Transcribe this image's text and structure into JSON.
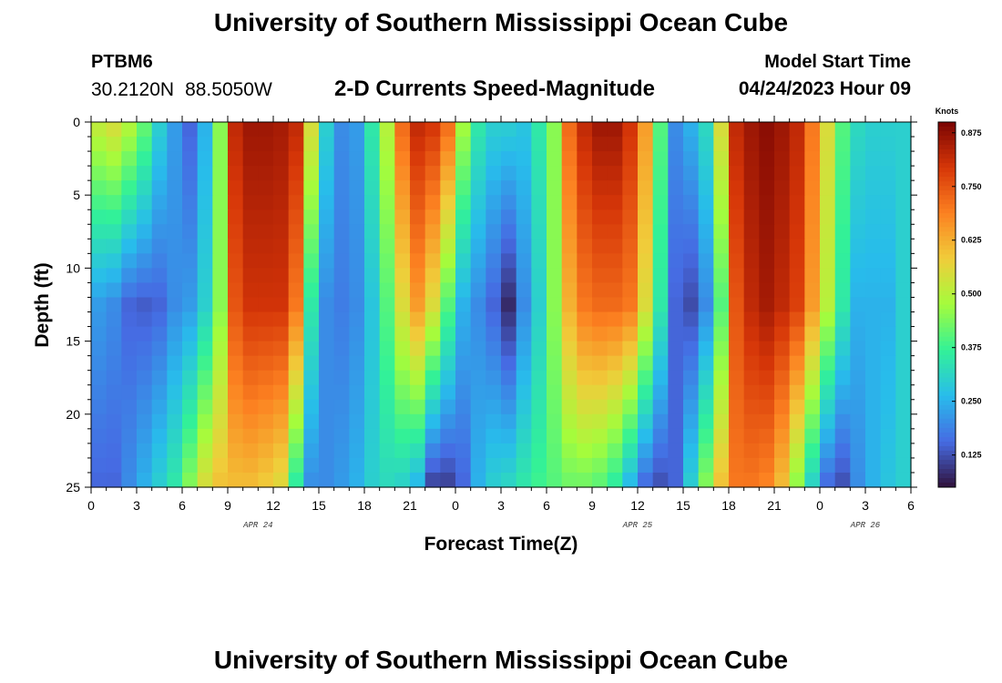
{
  "page": {
    "title": "University of Southern Mississippi Ocean Cube",
    "title_repeat": "University of Southern Mississippi Ocean Cube",
    "station": "PTBM6",
    "latitude": "30.2120N",
    "longitude": "88.5050W",
    "subtitle": "2-D Currents Speed-Magnitude",
    "model_start_label": "Model Start Time",
    "model_start_value": "04/24/2023 Hour 09"
  },
  "colors": {
    "low": "#30123b",
    "mid": "#7cf24a",
    "high": "#7a0403",
    "colormap": "turbo"
  },
  "chart_data": {
    "type": "heatmap",
    "title": "2-D Currents Speed-Magnitude",
    "xlabel": "Forecast Time(Z)",
    "ylabel": "Depth (ft)",
    "x_tick_labels": [
      "0",
      "3",
      "6",
      "9",
      "12",
      "15",
      "18",
      "21",
      "0",
      "3",
      "6",
      "9",
      "12",
      "15",
      "18",
      "21",
      "0",
      "3",
      "6"
    ],
    "x_range_hours": [
      0,
      54
    ],
    "day_labels": [
      {
        "label": "APR 24",
        "at_hour": 11
      },
      {
        "label": "APR 25",
        "at_hour": 36
      },
      {
        "label": "APR 26",
        "at_hour": 51
      }
    ],
    "y_tick_labels": [
      "0",
      "5",
      "10",
      "15",
      "20",
      "25"
    ],
    "y_range_ft": [
      0,
      25
    ],
    "colorbar": {
      "title": "Knots",
      "range": [
        0.05,
        0.9
      ],
      "tick_labels": [
        "0.125",
        "0.250",
        "0.375",
        "0.500",
        "0.625",
        "0.750",
        "0.875"
      ]
    },
    "grid": {
      "x_hours": 54,
      "y_levels": 25
    },
    "profiles_depth_ft": [
      0,
      12.5,
      25
    ],
    "profile_times_hours": [
      0,
      1,
      2,
      3,
      4,
      5,
      6,
      7,
      8,
      9,
      10,
      11,
      12,
      13,
      14,
      15,
      16,
      17,
      18,
      19,
      20,
      21,
      22,
      23,
      24,
      25,
      26,
      27,
      28,
      29,
      30,
      31,
      32,
      33,
      34,
      35,
      36,
      37,
      38,
      39,
      40,
      41,
      42,
      43,
      44,
      45,
      46,
      47,
      48,
      49,
      50,
      51,
      52,
      53
    ],
    "speed_knots_surface": [
      0.52,
      0.55,
      0.5,
      0.42,
      0.3,
      0.22,
      0.15,
      0.25,
      0.45,
      0.82,
      0.86,
      0.86,
      0.85,
      0.82,
      0.55,
      0.3,
      0.2,
      0.22,
      0.35,
      0.5,
      0.72,
      0.82,
      0.8,
      0.72,
      0.48,
      0.35,
      0.3,
      0.3,
      0.28,
      0.35,
      0.45,
      0.72,
      0.82,
      0.86,
      0.86,
      0.8,
      0.65,
      0.4,
      0.2,
      0.25,
      0.32,
      0.55,
      0.82,
      0.86,
      0.88,
      0.86,
      0.82,
      0.7,
      0.55,
      0.4,
      0.32,
      0.3,
      0.3,
      0.3
    ],
    "speed_knots_mid": [
      0.22,
      0.2,
      0.15,
      0.14,
      0.15,
      0.2,
      0.22,
      0.3,
      0.45,
      0.75,
      0.8,
      0.8,
      0.8,
      0.7,
      0.35,
      0.2,
      0.18,
      0.2,
      0.28,
      0.4,
      0.55,
      0.65,
      0.55,
      0.4,
      0.25,
      0.2,
      0.15,
      0.08,
      0.2,
      0.3,
      0.45,
      0.62,
      0.7,
      0.72,
      0.72,
      0.7,
      0.55,
      0.35,
      0.15,
      0.12,
      0.2,
      0.4,
      0.75,
      0.82,
      0.85,
      0.82,
      0.78,
      0.65,
      0.5,
      0.35,
      0.25,
      0.25,
      0.25,
      0.3
    ],
    "speed_knots_bottom": [
      0.15,
      0.15,
      0.2,
      0.25,
      0.3,
      0.35,
      0.45,
      0.55,
      0.6,
      0.6,
      0.6,
      0.58,
      0.55,
      0.35,
      0.2,
      0.2,
      0.22,
      0.25,
      0.3,
      0.32,
      0.3,
      0.25,
      0.1,
      0.1,
      0.15,
      0.25,
      0.3,
      0.32,
      0.35,
      0.38,
      0.4,
      0.42,
      0.42,
      0.4,
      0.35,
      0.25,
      0.15,
      0.12,
      0.15,
      0.3,
      0.45,
      0.6,
      0.7,
      0.7,
      0.68,
      0.6,
      0.45,
      0.3,
      0.15,
      0.12,
      0.2,
      0.25,
      0.28,
      0.3
    ]
  }
}
